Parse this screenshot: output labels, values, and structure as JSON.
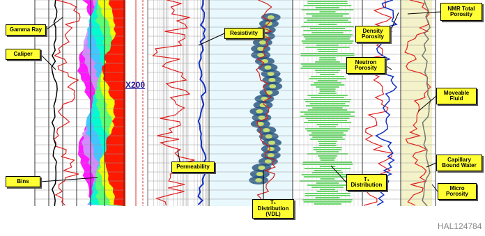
{
  "callouts": {
    "gamma_ray": "Gamma Ray",
    "caliper": "Caliper",
    "bins": "Bins",
    "resistivity": "Resistivity",
    "permeability": "Permeability",
    "t1_vdl": "T₁ Distribution (VDL)",
    "density_porosity": "Density Porosity",
    "neutron_porosity": "Neutron Porosity",
    "nmr_total_porosity": "NMR Total Porosity",
    "moveable_fluid": "Moveable Fluid",
    "t1_distribution": "T₁ Distribution",
    "capillary_bound_water": "Capillary Bound Water",
    "micro_porosity": "Micro Porosity"
  },
  "depth_label": "X200",
  "figure_id": "HAL124784"
}
